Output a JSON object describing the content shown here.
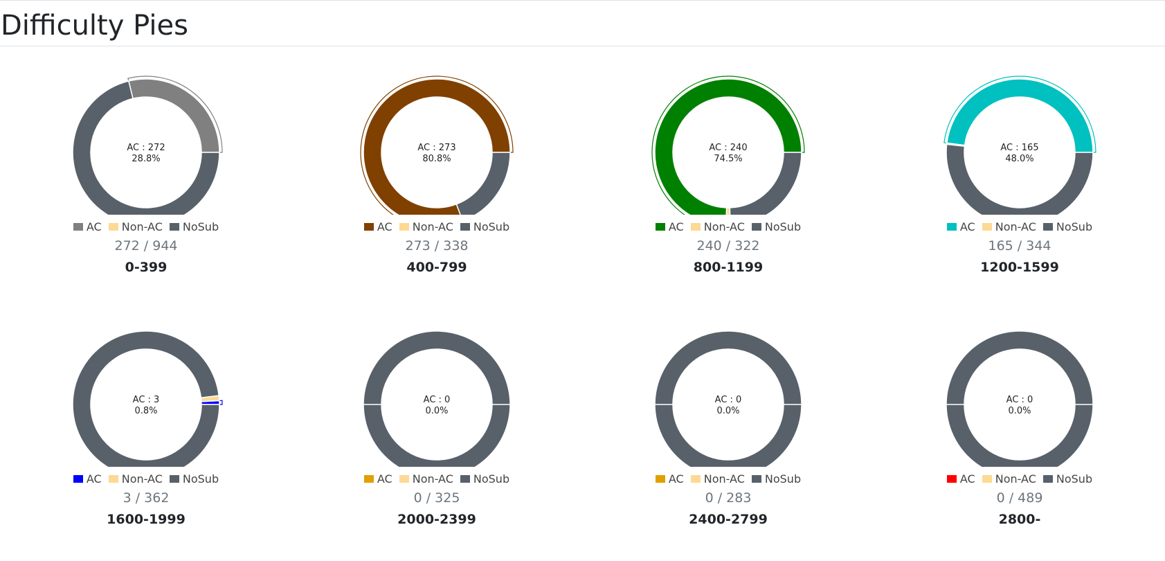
{
  "page": {
    "title": "Difficulty Pies"
  },
  "legend_labels": {
    "ac": "AC",
    "non_ac": "Non-AC",
    "nosub": "NoSub"
  },
  "colors": {
    "non_ac": "#fdd994",
    "nosub": "#58616a"
  },
  "chart_data": [
    {
      "type": "pie",
      "range": "0-399",
      "ac": 272,
      "non_ac": 0,
      "total": 944,
      "center_ac": "AC : 272",
      "center_pct": "28.8%",
      "count_text": "272 / 944",
      "ac_color": "#808080"
    },
    {
      "type": "pie",
      "range": "400-799",
      "ac": 273,
      "non_ac": 0,
      "total": 338,
      "center_ac": "AC : 273",
      "center_pct": "80.8%",
      "count_text": "273 / 338",
      "ac_color": "#804000"
    },
    {
      "type": "pie",
      "range": "800-1199",
      "ac": 240,
      "non_ac": 3,
      "total": 322,
      "center_ac": "AC : 240",
      "center_pct": "74.5%",
      "count_text": "240 / 322",
      "ac_color": "#008000"
    },
    {
      "type": "pie",
      "range": "1200-1599",
      "ac": 165,
      "non_ac": 1,
      "total": 344,
      "center_ac": "AC : 165",
      "center_pct": "48.0%",
      "count_text": "165 / 344",
      "ac_color": "#00c0c0"
    },
    {
      "type": "pie",
      "range": "1600-1999",
      "ac": 3,
      "non_ac": 4,
      "total": 362,
      "center_ac": "AC : 3",
      "center_pct": "0.8%",
      "count_text": "3 / 362",
      "ac_color": "#0000ff"
    },
    {
      "type": "pie",
      "range": "2000-2399",
      "ac": 0,
      "non_ac": 0,
      "total": 325,
      "center_ac": "AC : 0",
      "center_pct": "0.0%",
      "count_text": "0 / 325",
      "ac_color": "#e0a000"
    },
    {
      "type": "pie",
      "range": "2400-2799",
      "ac": 0,
      "non_ac": 0,
      "total": 283,
      "center_ac": "AC : 0",
      "center_pct": "0.0%",
      "count_text": "0 / 283",
      "ac_color": "#e0a000"
    },
    {
      "type": "pie",
      "range": "2800-",
      "ac": 0,
      "non_ac": 0,
      "total": 489,
      "center_ac": "AC : 0",
      "center_pct": "0.0%",
      "count_text": "0 / 489",
      "ac_color": "#ff0000"
    }
  ]
}
